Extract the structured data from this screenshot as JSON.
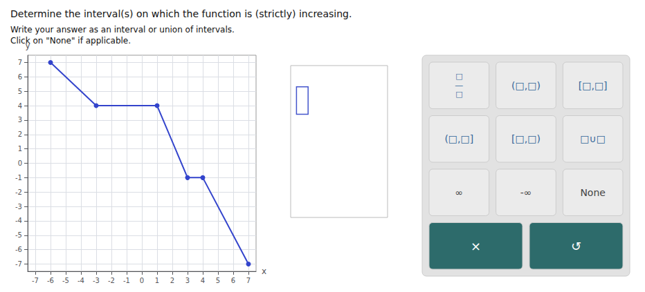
{
  "chart_data": {
    "type": "line",
    "title": "Determine the interval(s) on which the function is (strictly) increasing.",
    "subtitle": "Write your answer as an interval or union of intervals.\nClick on \"None\" if applicable.",
    "xlabel": "x",
    "ylabel": "y",
    "x": [
      -6,
      -3,
      1,
      3,
      4,
      7
    ],
    "values": [
      7,
      4,
      4,
      -1,
      -1,
      -7
    ],
    "color": "#3344cc",
    "marker": "circle",
    "xlim": [
      -7.5,
      7.5
    ],
    "xticks": [
      -7,
      -6,
      -5,
      -4,
      -3,
      -2,
      -1,
      0,
      1,
      2,
      3,
      4,
      5,
      6,
      7
    ],
    "ylim": [
      -7.5,
      7.5
    ],
    "yticks": [
      -7,
      -6,
      -5,
      -4,
      -3,
      -2,
      -1,
      0,
      1,
      2,
      3,
      4,
      5,
      6,
      7
    ],
    "grid": true,
    "annotations": [
      "□\n―\n□",
      "(□,□)",
      "[□,□]",
      "(□,□]",
      "[□,□)",
      "□∪□",
      "∞",
      "-∞",
      "None",
      "×",
      "↺"
    ]
  }
}
